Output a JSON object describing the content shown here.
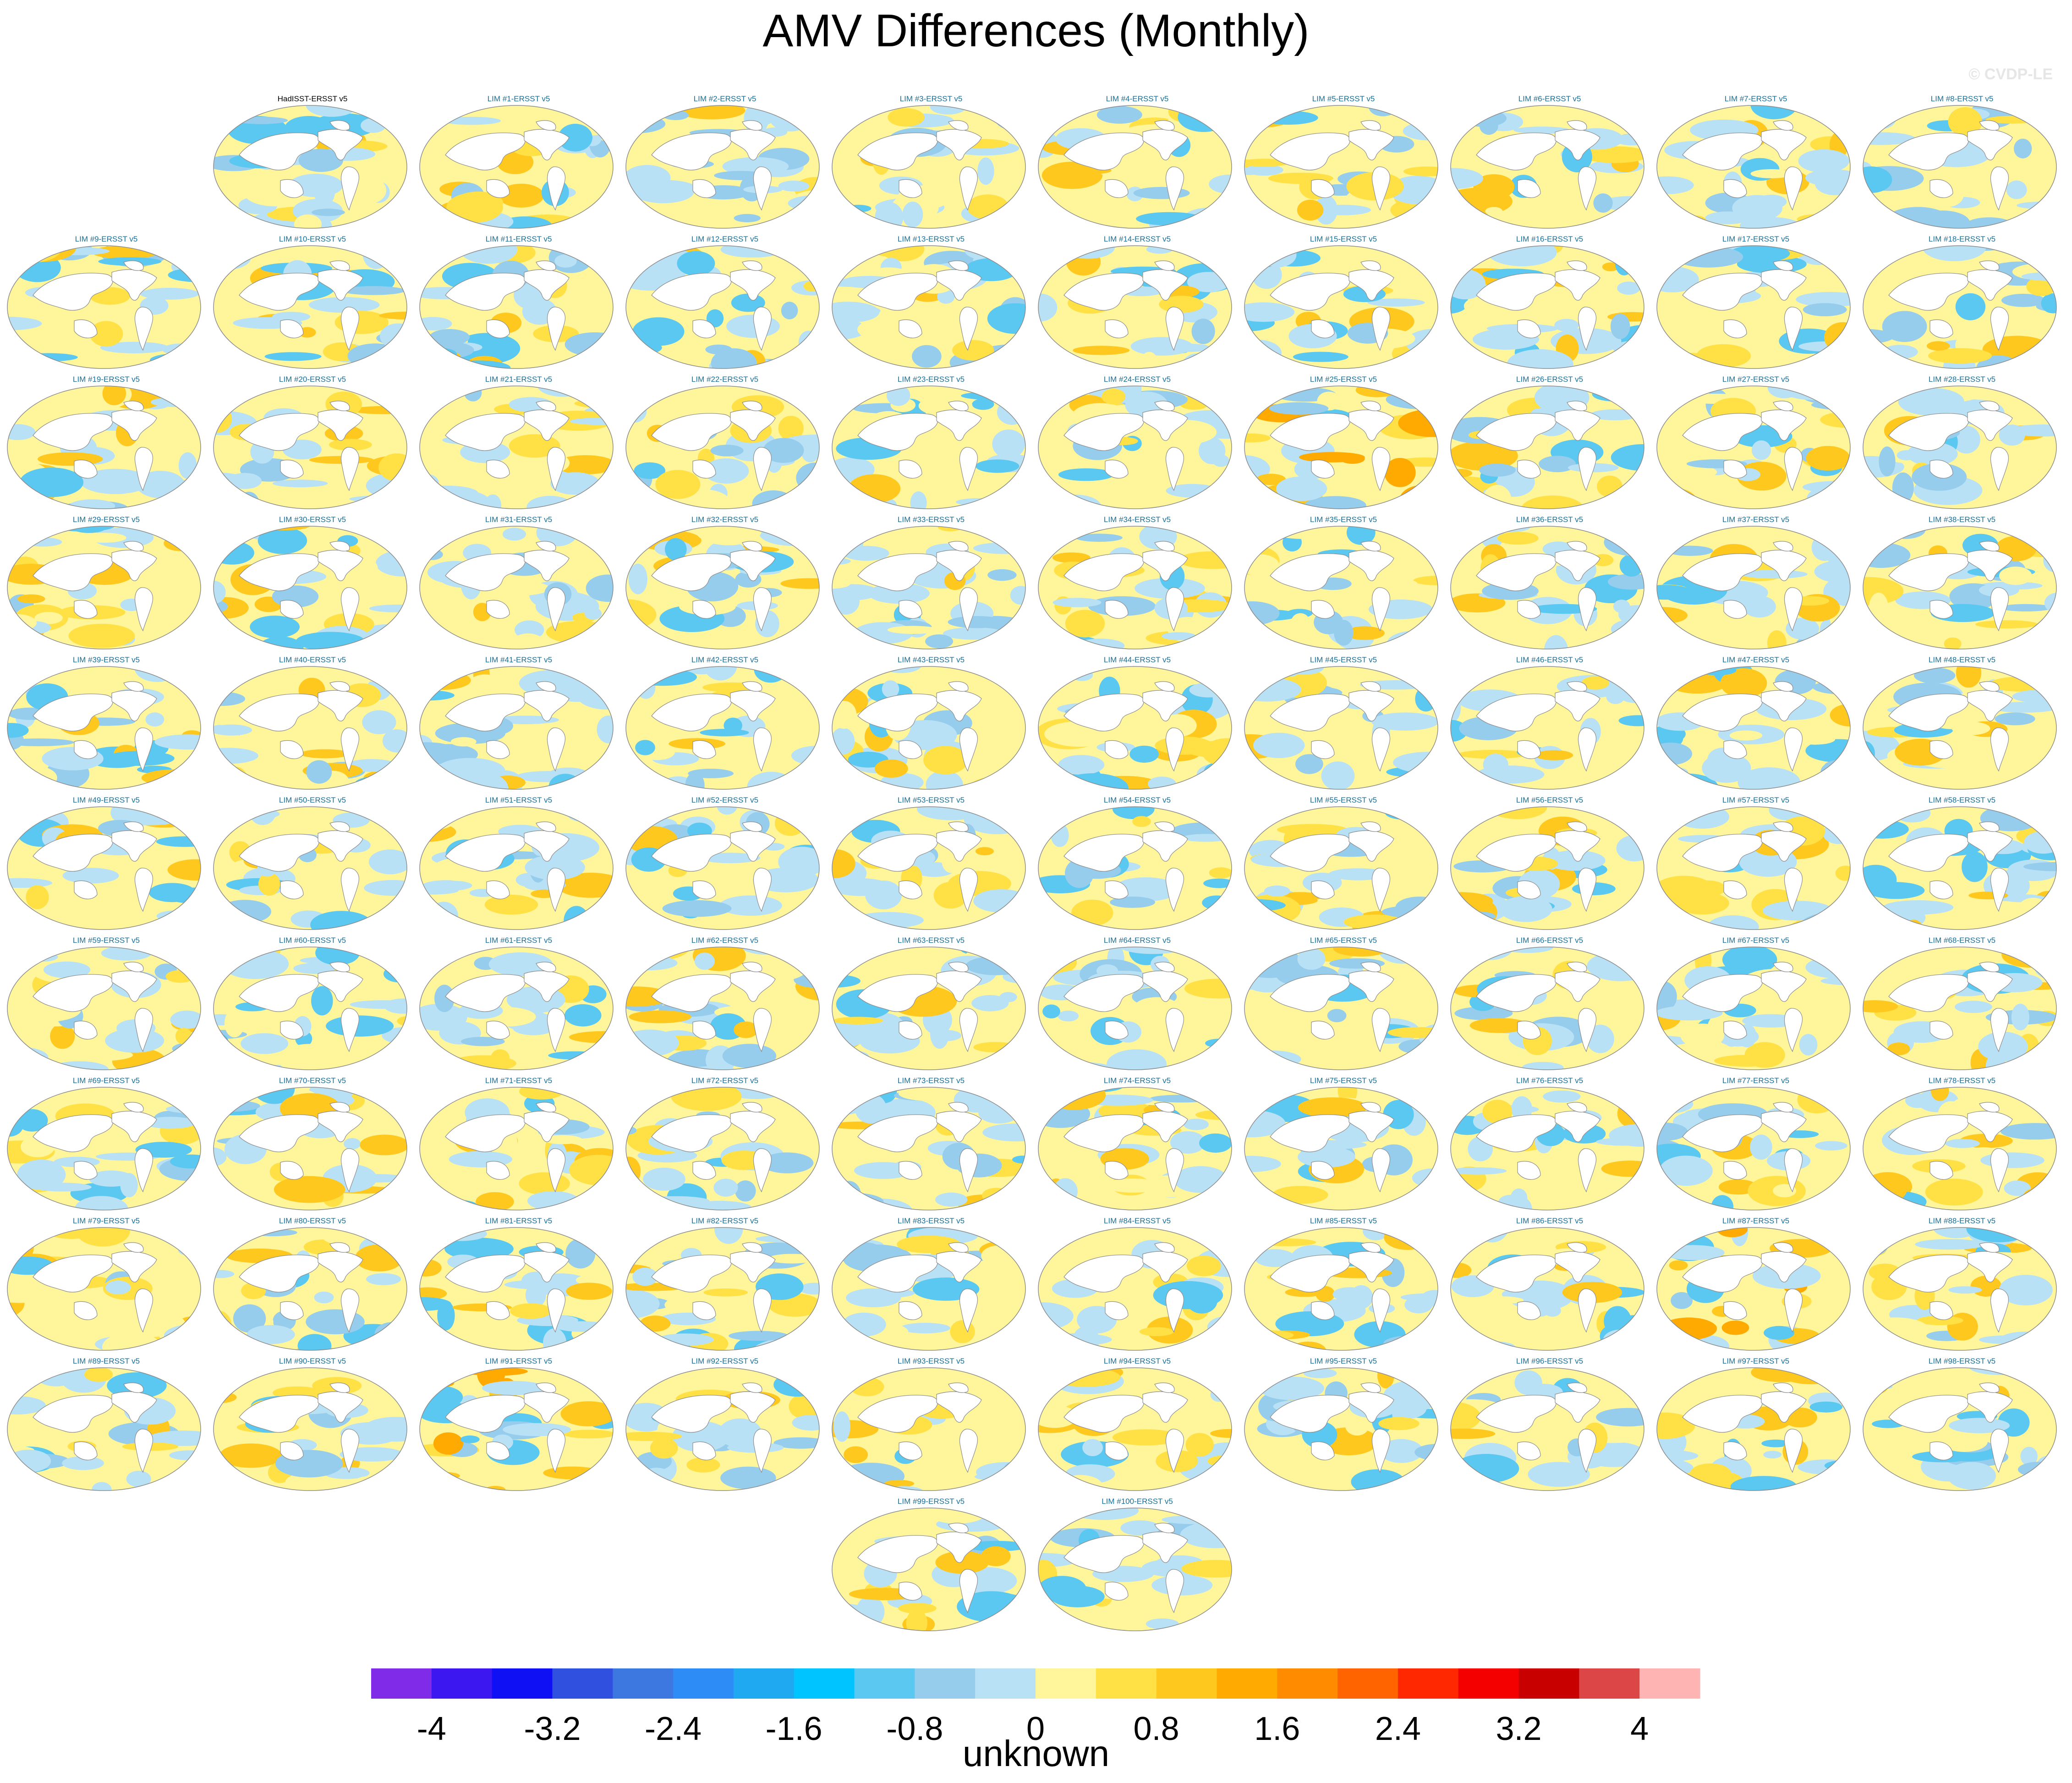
{
  "title": "AMV Differences (Monthly)",
  "watermark": "© CVDP-LE",
  "chart_data": {
    "type": "heatmap",
    "title": "AMV Differences (Monthly)",
    "panel_titles": [
      "HadISST-ERSST v5",
      "LIM #1-ERSST v5",
      "LIM #2-ERSST v5",
      "LIM #3-ERSST v5",
      "LIM #4-ERSST v5",
      "LIM #5-ERSST v5",
      "LIM #6-ERSST v5",
      "LIM #7-ERSST v5",
      "LIM #8-ERSST v5",
      "LIM #9-ERSST v5",
      "LIM #10-ERSST v5",
      "LIM #11-ERSST v5",
      "LIM #12-ERSST v5",
      "LIM #13-ERSST v5",
      "LIM #14-ERSST v5",
      "LIM #15-ERSST v5",
      "LIM #16-ERSST v5",
      "LIM #17-ERSST v5",
      "LIM #18-ERSST v5",
      "LIM #19-ERSST v5",
      "LIM #20-ERSST v5",
      "LIM #21-ERSST v5",
      "LIM #22-ERSST v5",
      "LIM #23-ERSST v5",
      "LIM #24-ERSST v5",
      "LIM #25-ERSST v5",
      "LIM #26-ERSST v5",
      "LIM #27-ERSST v5",
      "LIM #28-ERSST v5",
      "LIM #29-ERSST v5",
      "LIM #30-ERSST v5",
      "LIM #31-ERSST v5",
      "LIM #32-ERSST v5",
      "LIM #33-ERSST v5",
      "LIM #34-ERSST v5",
      "LIM #35-ERSST v5",
      "LIM #36-ERSST v5",
      "LIM #37-ERSST v5",
      "LIM #38-ERSST v5",
      "LIM #39-ERSST v5",
      "LIM #40-ERSST v5",
      "LIM #41-ERSST v5",
      "LIM #42-ERSST v5",
      "LIM #43-ERSST v5",
      "LIM #44-ERSST v5",
      "LIM #45-ERSST v5",
      "LIM #46-ERSST v5",
      "LIM #47-ERSST v5",
      "LIM #48-ERSST v5",
      "LIM #49-ERSST v5",
      "LIM #50-ERSST v5",
      "LIM #51-ERSST v5",
      "LIM #52-ERSST v5",
      "LIM #53-ERSST v5",
      "LIM #54-ERSST v5",
      "LIM #55-ERSST v5",
      "LIM #56-ERSST v5",
      "LIM #57-ERSST v5",
      "LIM #58-ERSST v5",
      "LIM #59-ERSST v5",
      "LIM #60-ERSST v5",
      "LIM #61-ERSST v5",
      "LIM #62-ERSST v5",
      "LIM #63-ERSST v5",
      "LIM #64-ERSST v5",
      "LIM #65-ERSST v5",
      "LIM #66-ERSST v5",
      "LIM #67-ERSST v5",
      "LIM #68-ERSST v5",
      "LIM #69-ERSST v5",
      "LIM #70-ERSST v5",
      "LIM #71-ERSST v5",
      "LIM #72-ERSST v5",
      "LIM #73-ERSST v5",
      "LIM #74-ERSST v5",
      "LIM #75-ERSST v5",
      "LIM #76-ERSST v5",
      "LIM #77-ERSST v5",
      "LIM #78-ERSST v5",
      "LIM #79-ERSST v5",
      "LIM #80-ERSST v5",
      "LIM #81-ERSST v5",
      "LIM #82-ERSST v5",
      "LIM #83-ERSST v5",
      "LIM #84-ERSST v5",
      "LIM #85-ERSST v5",
      "LIM #86-ERSST v5",
      "LIM #87-ERSST v5",
      "LIM #88-ERSST v5",
      "LIM #89-ERSST v5",
      "LIM #90-ERSST v5",
      "LIM #91-ERSST v5",
      "LIM #92-ERSST v5",
      "LIM #93-ERSST v5",
      "LIM #94-ERSST v5",
      "LIM #95-ERSST v5",
      "LIM #96-ERSST v5",
      "LIM #97-ERSST v5",
      "LIM #98-ERSST v5",
      "LIM #99-ERSST v5",
      "LIM #100-ERSST v5"
    ],
    "colorbar": {
      "label": "unknown",
      "range": [
        -4.4,
        4.4
      ],
      "tick_values": [
        -4,
        -3.2,
        -2.4,
        -1.6,
        -0.8,
        0,
        0.8,
        1.6,
        2.4,
        3.2,
        4
      ],
      "tick_labels": [
        "-4",
        "-3.2",
        "-2.4",
        "-1.6",
        "-0.8",
        "0",
        "0.8",
        "1.6",
        "2.4",
        "3.2",
        "4"
      ],
      "colors": [
        "#7f2be8",
        "#3d17f0",
        "#1010f5",
        "#3050e0",
        "#3c78e0",
        "#2d8cf5",
        "#1ea9f0",
        "#00c4ff",
        "#5ac8f0",
        "#96cdec",
        "#b9e1f5",
        "#fff59b",
        "#ffe146",
        "#ffc81e",
        "#ffaa00",
        "#ff8c00",
        "#ff6400",
        "#ff2800",
        "#f50000",
        "#c80000",
        "#dc4646",
        "#ffb4b4"
      ]
    }
  }
}
